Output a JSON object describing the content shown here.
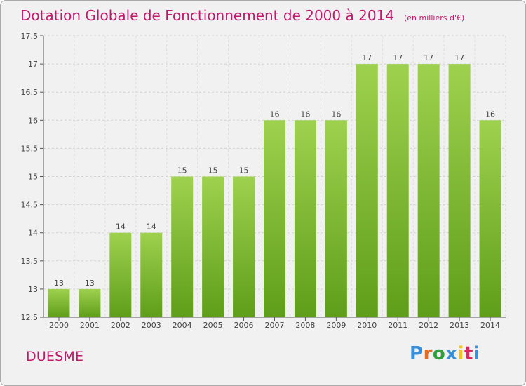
{
  "chart_data": {
    "type": "bar",
    "title": "Dotation Globale de Fonctionnement de 2000 à 2014",
    "subtitle": "(en milliers d'€)",
    "categories": [
      "2000",
      "2001",
      "2002",
      "2003",
      "2004",
      "2005",
      "2006",
      "2007",
      "2008",
      "2009",
      "2010",
      "2011",
      "2012",
      "2013",
      "2014"
    ],
    "values": [
      13,
      13,
      14,
      14,
      15,
      15,
      15,
      16,
      16,
      16,
      17,
      17,
      17,
      17,
      16
    ],
    "ylim": [
      12.5,
      17.5
    ],
    "yticks": [
      12.5,
      13,
      13.5,
      14,
      14.5,
      15,
      15.5,
      16,
      16.5,
      17,
      17.5
    ],
    "grid": true,
    "bar_color": "#8cc63f",
    "bar_color_dark": "#5f9e1a"
  },
  "footer": {
    "place": "DUESME",
    "logo": "Proxiti"
  },
  "colors": {
    "title": "#c2186b",
    "logo_letters": [
      "#3a8fd9",
      "#e66a1f",
      "#2ea03a",
      "#3a8fd9",
      "#f2c318",
      "#e0245e",
      "#3a8fd9"
    ]
  }
}
